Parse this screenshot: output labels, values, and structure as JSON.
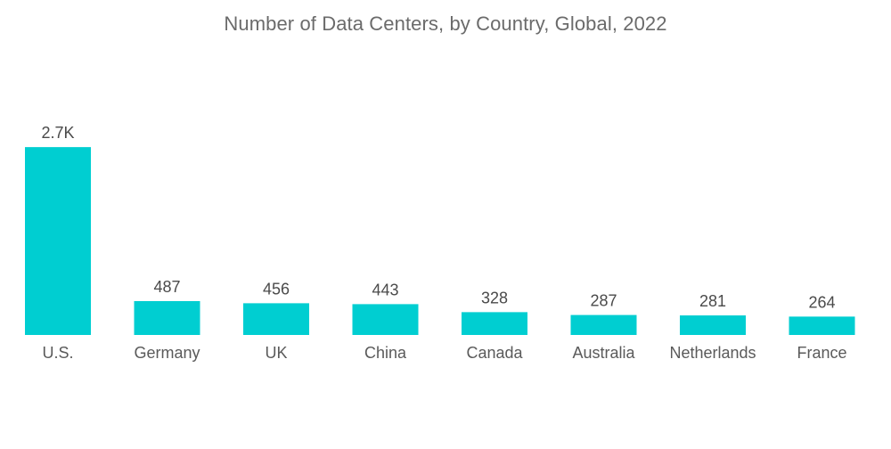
{
  "chart_data": {
    "type": "bar",
    "title": "Number of Data Centers, by Country, Global, 2022",
    "xlabel": "",
    "ylabel": "",
    "categories": [
      "U.S.",
      "Germany",
      "UK",
      "China",
      "Canada",
      "Australia",
      "Netherlands",
      "France"
    ],
    "values": [
      2700,
      487,
      456,
      443,
      328,
      287,
      281,
      264
    ],
    "data_labels": [
      "2.7K",
      "487",
      "456",
      "443",
      "328",
      "287",
      "281",
      "264"
    ],
    "ylim": [
      0,
      2750
    ],
    "grid": false,
    "legend": "none",
    "bar_color": "#00CED1"
  }
}
